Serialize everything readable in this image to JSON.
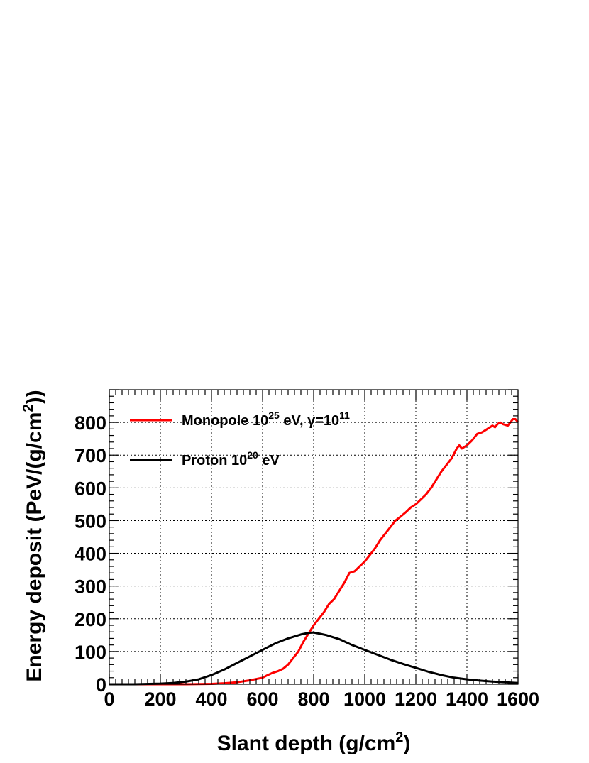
{
  "chart_data": {
    "type": "line",
    "xlabel_main": "Slant depth (g/cm",
    "xlabel_sup": "2",
    "xlabel_end": ")",
    "ylabel_main": "Energy deposit (PeV/(g/cm",
    "ylabel_sup": "2",
    "ylabel_end": "))",
    "xlim": [
      0,
      1600
    ],
    "ylim": [
      0,
      900
    ],
    "xticks": [
      0,
      200,
      400,
      600,
      800,
      1000,
      1200,
      1400,
      1600
    ],
    "yticks": [
      0,
      100,
      200,
      300,
      400,
      500,
      600,
      700,
      800
    ],
    "grid": true,
    "legend": {
      "placement": "top-left",
      "entries": [
        {
          "series": 0,
          "parts": [
            {
              "text": "Monopole 10",
              "sup": false
            },
            {
              "text": "25",
              "sup": true
            },
            {
              "text": " eV, γ=10",
              "sup": false
            },
            {
              "text": "11",
              "sup": true
            }
          ]
        },
        {
          "series": 1,
          "parts": [
            {
              "text": "Proton 10",
              "sup": false
            },
            {
              "text": "20",
              "sup": true
            },
            {
              "text": " eV",
              "sup": false
            }
          ]
        }
      ]
    },
    "series": [
      {
        "color": "#ff0000",
        "x": [
          0,
          200,
          300,
          400,
          450,
          500,
          550,
          600,
          620,
          640,
          660,
          680,
          700,
          720,
          740,
          760,
          780,
          800,
          820,
          840,
          860,
          880,
          900,
          920,
          940,
          960,
          980,
          1000,
          1020,
          1040,
          1060,
          1080,
          1100,
          1120,
          1140,
          1160,
          1180,
          1200,
          1220,
          1240,
          1260,
          1280,
          1300,
          1320,
          1340,
          1360,
          1370,
          1380,
          1400,
          1420,
          1440,
          1460,
          1480,
          1500,
          1510,
          1520,
          1530,
          1540,
          1560,
          1580,
          1590,
          1600
        ],
        "y": [
          0,
          0,
          0,
          1,
          3,
          6,
          12,
          20,
          28,
          35,
          40,
          47,
          60,
          80,
          100,
          130,
          155,
          180,
          200,
          220,
          245,
          260,
          285,
          310,
          340,
          345,
          360,
          375,
          395,
          415,
          440,
          460,
          480,
          500,
          512,
          525,
          540,
          550,
          565,
          580,
          600,
          625,
          650,
          670,
          690,
          720,
          730,
          720,
          730,
          745,
          765,
          770,
          780,
          790,
          785,
          795,
          800,
          795,
          790,
          810,
          810,
          800
        ]
      },
      {
        "color": "#000000",
        "x": [
          0,
          100,
          200,
          250,
          300,
          350,
          400,
          450,
          500,
          550,
          600,
          650,
          700,
          750,
          780,
          800,
          820,
          850,
          900,
          950,
          1000,
          1050,
          1100,
          1150,
          1200,
          1250,
          1300,
          1350,
          1400,
          1450,
          1500,
          1550,
          1600
        ],
        "y": [
          0,
          0,
          2,
          4,
          8,
          15,
          28,
          45,
          65,
          85,
          105,
          125,
          140,
          152,
          157,
          158,
          155,
          150,
          138,
          120,
          105,
          90,
          75,
          62,
          50,
          38,
          28,
          20,
          15,
          11,
          8,
          6,
          4
        ]
      }
    ]
  }
}
